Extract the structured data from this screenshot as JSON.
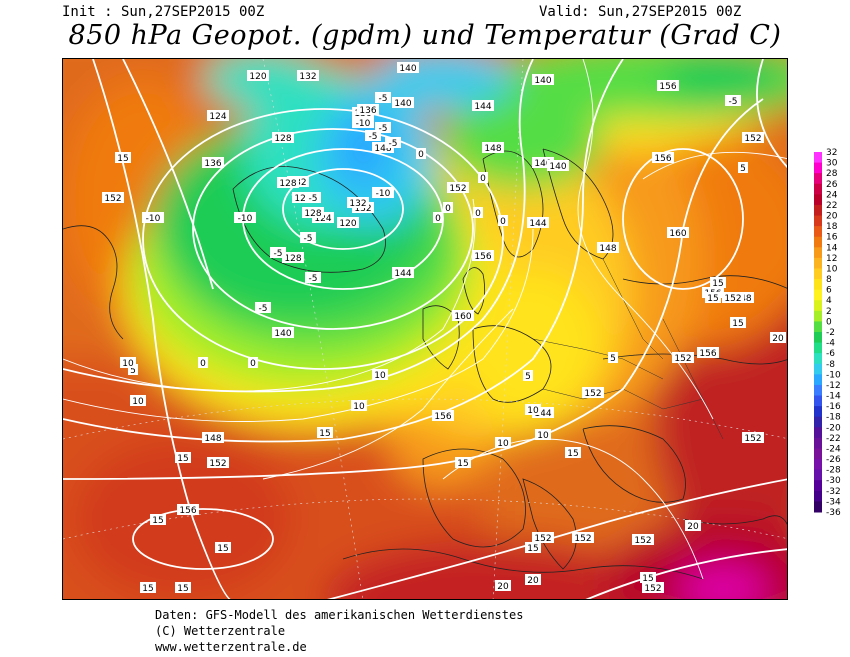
{
  "header": {
    "init": "Init : Sun,27SEP2015 00Z",
    "valid": "Valid: Sun,27SEP2015 00Z",
    "title": "850 hPa Geopot. (gpdm) und Temperatur (Grad C)"
  },
  "credits": {
    "line1": "Daten: GFS-Modell des amerikanischen Wetterdienstes",
    "line2": "(C) Wetterzentrale",
    "line3": "www.wetterzentrale.de"
  },
  "legend": {
    "values": [
      "32",
      "30",
      "28",
      "26",
      "24",
      "22",
      "20",
      "18",
      "16",
      "14",
      "12",
      "10",
      "8",
      "6",
      "4",
      "2",
      "0",
      "-2",
      "-4",
      "-6",
      "-8",
      "-10",
      "-12",
      "-14",
      "-16",
      "-18",
      "-20",
      "-22",
      "-24",
      "-26",
      "-28",
      "-30",
      "-32",
      "-34",
      "-36"
    ],
    "colors": [
      "#ff33ff",
      "#ff00cc",
      "#e6007a",
      "#cc0044",
      "#b8002b",
      "#c41f1f",
      "#d63a1a",
      "#e85a15",
      "#f07a10",
      "#f79a1a",
      "#fbb31f",
      "#ffcc22",
      "#ffe31a",
      "#fff21e",
      "#d9f21e",
      "#a6ee28",
      "#55dd44",
      "#1fcc55",
      "#22dd88",
      "#2de0c0",
      "#33ccee",
      "#2aa8ff",
      "#3a7dff",
      "#3355ee",
      "#2233cc",
      "#3322aa",
      "#551199",
      "#6a1199",
      "#7a1199",
      "#7711aa",
      "#6611aa",
      "#550099",
      "#440088",
      "#330066"
    ]
  },
  "map_labels": {
    "geopotential": [
      "120",
      "132",
      "140",
      "140",
      "156",
      "124",
      "128",
      "132",
      "136",
      "128",
      "128",
      "128",
      "124",
      "120",
      "132",
      "140",
      "136",
      "132",
      "128",
      "136",
      "140",
      "144",
      "148",
      "148",
      "144",
      "152",
      "140",
      "140",
      "144",
      "148",
      "156",
      "160",
      "156",
      "160",
      "152",
      "148",
      "156",
      "152",
      "152",
      "152",
      "156",
      "152",
      "148",
      "152",
      "156",
      "152",
      "152",
      "152",
      "152",
      "144",
      "156",
      "152"
    ],
    "temperature": [
      "-5",
      "-10",
      "-5",
      "-5",
      "-10",
      "-10",
      "-5",
      "-10",
      "-5",
      "-5",
      "-5",
      "0",
      "0",
      "0",
      "0",
      "0",
      "0",
      "5",
      "5",
      "5",
      "5",
      "10",
      "10",
      "10",
      "10",
      "10",
      "15",
      "15",
      "15",
      "15",
      "15",
      "15",
      "15",
      "15",
      "15",
      "15",
      "15",
      "15",
      "20",
      "20",
      "20",
      "20",
      "10",
      "10",
      "-5",
      "-5",
      "0",
      "-5",
      "0",
      "15",
      "15"
    ]
  }
}
